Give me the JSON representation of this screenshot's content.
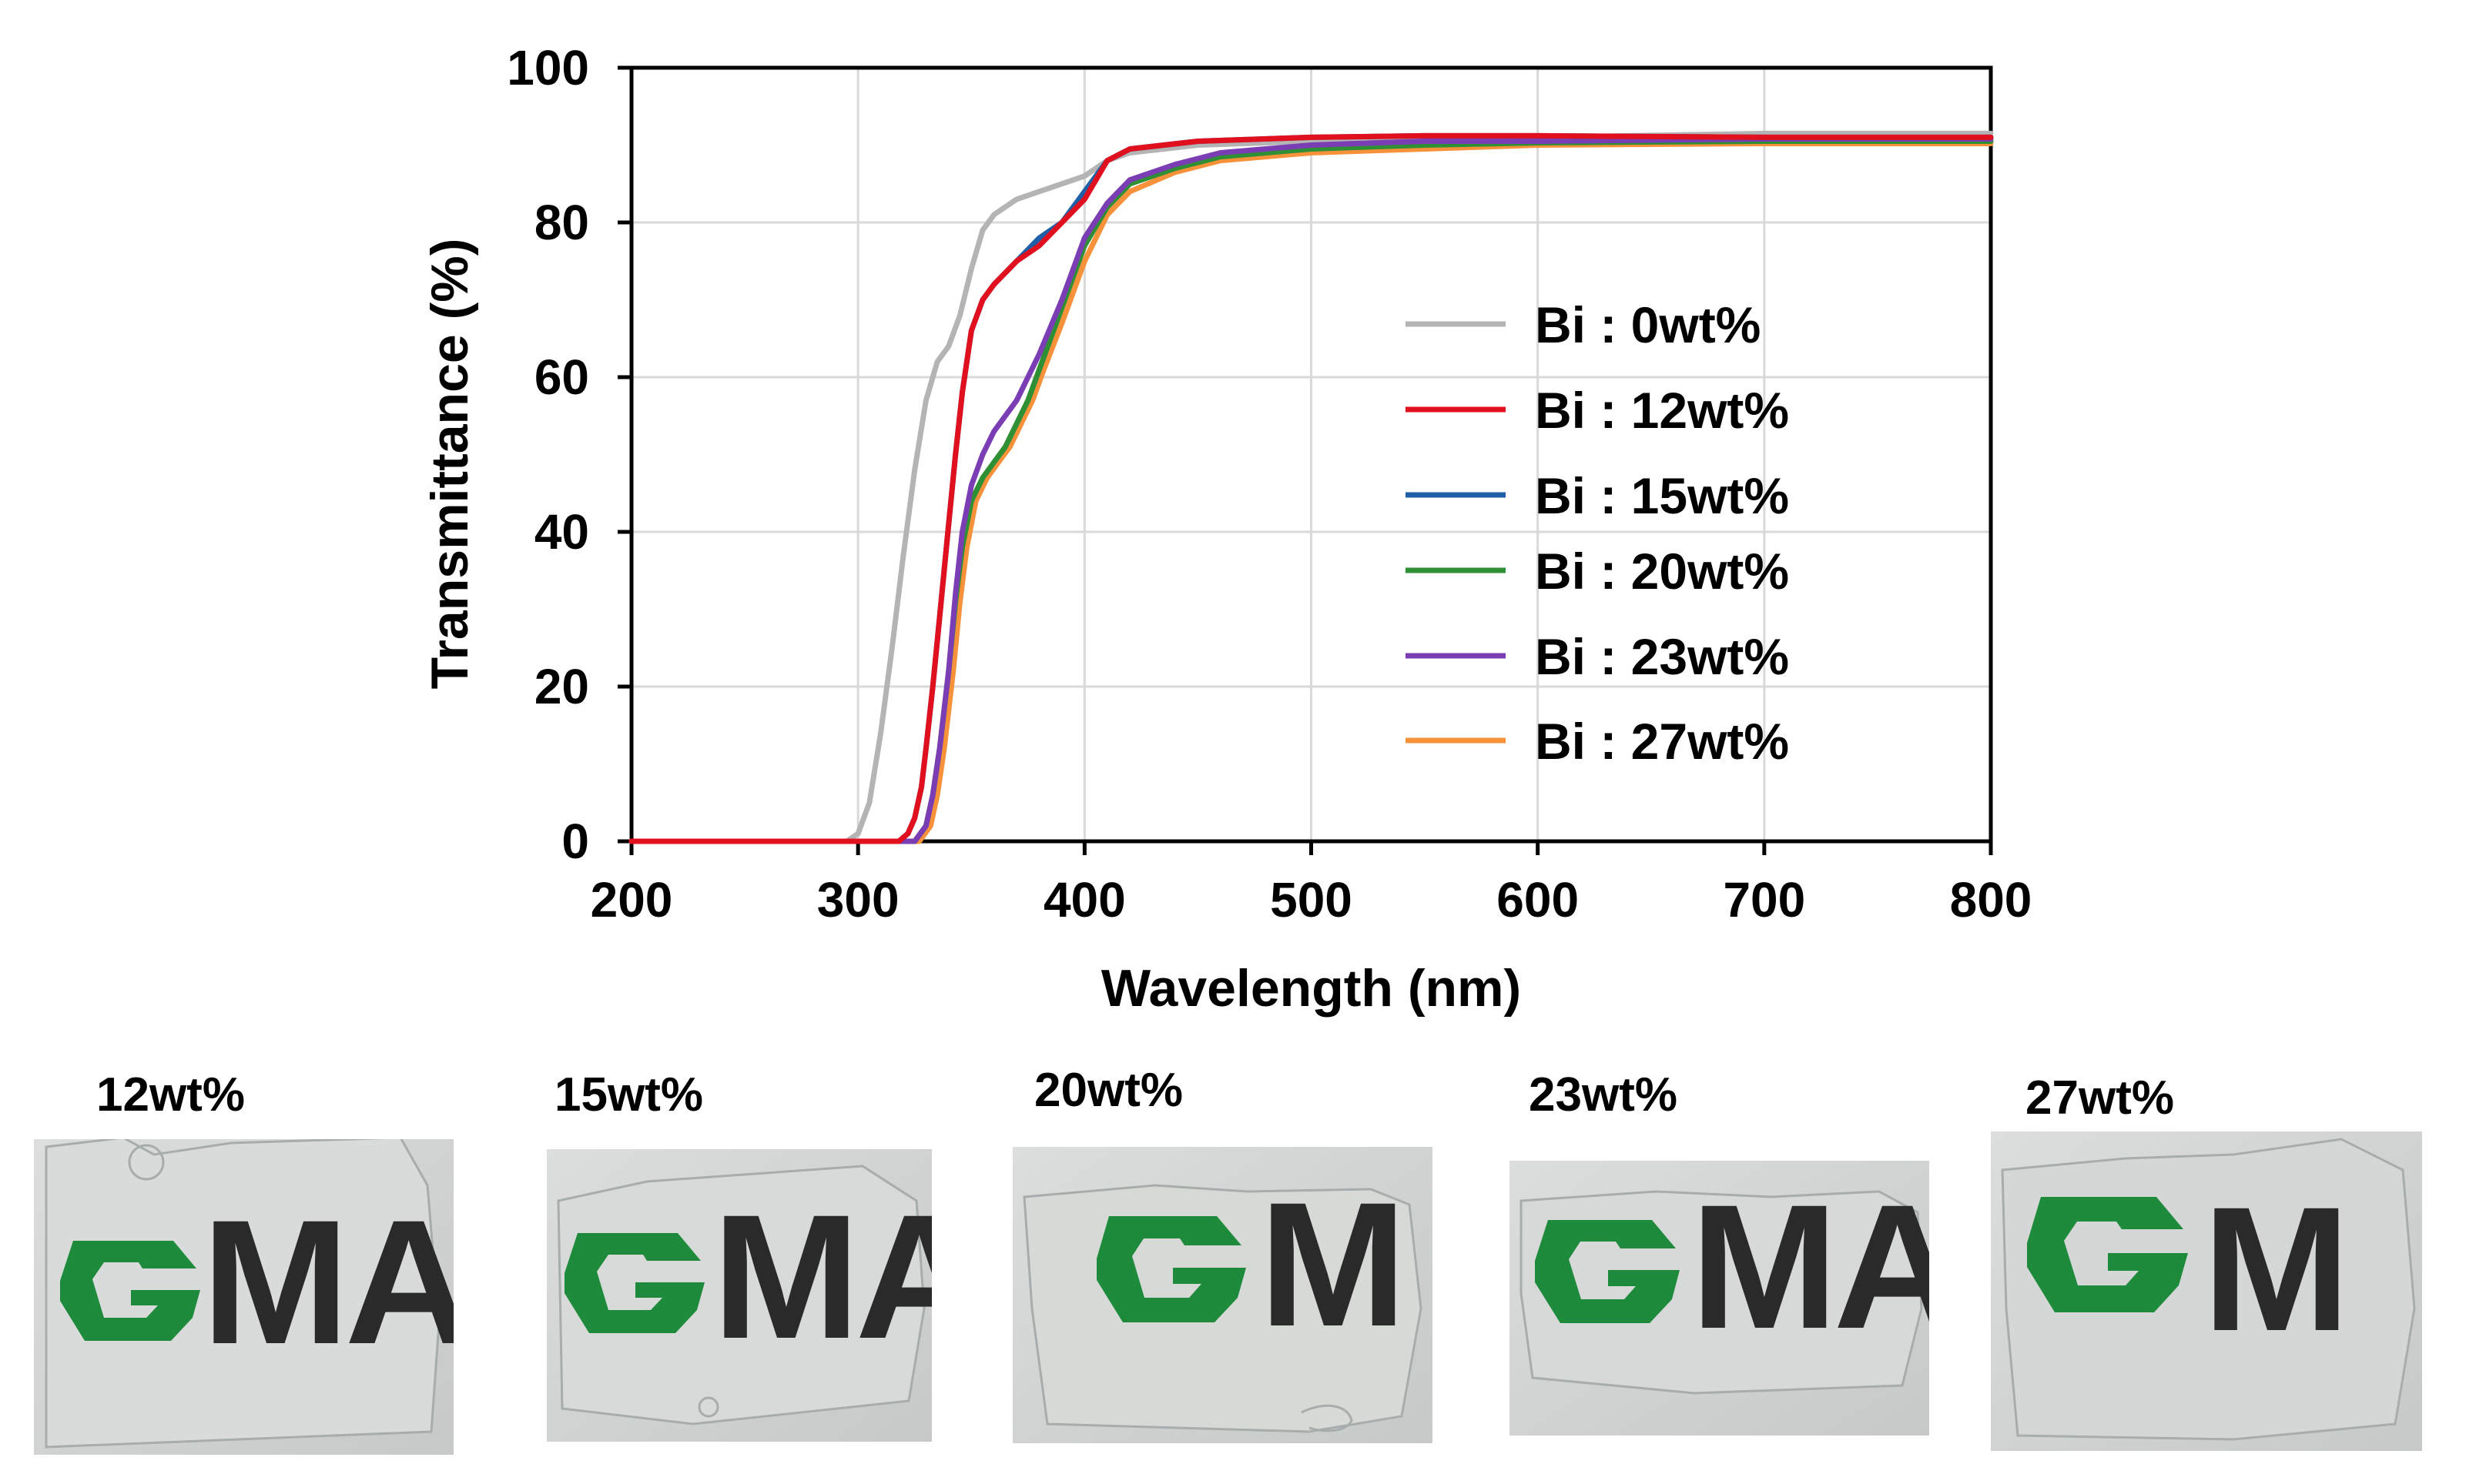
{
  "chart_data": {
    "type": "line",
    "title": "",
    "xlabel": "Wavelength (nm)",
    "ylabel": "Transmittance (%)",
    "xlim": [
      200,
      800
    ],
    "ylim": [
      0,
      100
    ],
    "xticks": [
      200,
      300,
      400,
      500,
      600,
      700,
      800
    ],
    "yticks": [
      0,
      20,
      40,
      60,
      80,
      100
    ],
    "grid": true,
    "legend_position": "center-right",
    "series": [
      {
        "name": "Bi : 0wt%",
        "color": "#b4b4b4",
        "x": [
          200,
          295,
          300,
          305,
          310,
          315,
          320,
          325,
          330,
          335,
          340,
          345,
          350,
          355,
          360,
          365,
          370,
          380,
          390,
          400,
          410,
          420,
          450,
          500,
          550,
          600,
          700,
          800
        ],
        "y": [
          0,
          0,
          1,
          5,
          14,
          25,
          37,
          48,
          57,
          62,
          64,
          68,
          74,
          79,
          81,
          82,
          83,
          84,
          85,
          86,
          88,
          89,
          90,
          90.5,
          91,
          91,
          91.5,
          91.5
        ]
      },
      {
        "name": "Bi : 12wt%",
        "color": "#e0101e",
        "x": [
          200,
          318,
          322,
          325,
          328,
          330,
          333,
          336,
          340,
          343,
          346,
          350,
          355,
          360,
          370,
          380,
          390,
          400,
          410,
          420,
          450,
          500,
          550,
          600,
          700,
          800
        ],
        "y": [
          0,
          0,
          1,
          3,
          7,
          12,
          20,
          29,
          41,
          50,
          58,
          66,
          70,
          72,
          75,
          77,
          80,
          83,
          88,
          89.5,
          90.5,
          91,
          91.2,
          91.2,
          91,
          91
        ]
      },
      {
        "name": "Bi : 15wt%",
        "color": "#1f5fa8",
        "x": [
          200,
          318,
          322,
          325,
          328,
          330,
          333,
          336,
          340,
          343,
          346,
          350,
          355,
          360,
          370,
          380,
          390,
          400,
          410,
          420,
          450,
          500,
          550,
          600,
          700,
          800
        ],
        "y": [
          0,
          0,
          1,
          3,
          7,
          12,
          20,
          29,
          41,
          50,
          58,
          66,
          70,
          72,
          75,
          78,
          80,
          84,
          88,
          89.5,
          90.5,
          91,
          91.2,
          91.2,
          91,
          91
        ]
      },
      {
        "name": "Bi : 20wt%",
        "color": "#2f8f35",
        "x": [
          200,
          325,
          330,
          333,
          336,
          340,
          343,
          346,
          350,
          355,
          360,
          365,
          370,
          375,
          380,
          390,
          400,
          410,
          420,
          440,
          460,
          500,
          550,
          600,
          700,
          800
        ],
        "y": [
          0,
          0,
          2,
          6,
          12,
          22,
          31,
          38,
          44,
          47,
          49,
          51,
          54,
          57,
          61,
          69,
          77,
          82,
          85,
          87,
          88.5,
          89.5,
          90,
          90.3,
          90.5,
          90.5
        ]
      },
      {
        "name": "Bi : 23wt%",
        "color": "#7b3db4",
        "x": [
          200,
          325,
          330,
          333,
          336,
          340,
          343,
          346,
          350,
          355,
          360,
          365,
          370,
          375,
          380,
          390,
          400,
          410,
          420,
          440,
          460,
          500,
          550,
          600,
          700,
          800
        ],
        "y": [
          0,
          0,
          2,
          6,
          12,
          22,
          32,
          40,
          46,
          50,
          53,
          55,
          57,
          60,
          63,
          70,
          78,
          82.5,
          85.5,
          87.5,
          89,
          90,
          90.5,
          90.5,
          90.8,
          90.8
        ]
      },
      {
        "name": "Bi : 27wt%",
        "color": "#f7913a",
        "x": [
          200,
          327,
          332,
          335,
          338,
          342,
          345,
          348,
          352,
          357,
          362,
          367,
          372,
          377,
          382,
          390,
          400,
          410,
          420,
          440,
          460,
          500,
          550,
          600,
          700,
          800
        ],
        "y": [
          0,
          0,
          2,
          6,
          12,
          22,
          31,
          38,
          44,
          47,
          49,
          51,
          54,
          57,
          61,
          67,
          75,
          81,
          84,
          86.5,
          88,
          89,
          89.5,
          90,
          90.2,
          90.2
        ]
      }
    ]
  },
  "photos": [
    {
      "label": "12wt%",
      "logo_text": "MA"
    },
    {
      "label": "15wt%",
      "logo_text": "MA"
    },
    {
      "label": "20wt%",
      "logo_text": "M"
    },
    {
      "label": "23wt%",
      "logo_text": "MA"
    },
    {
      "label": "27wt%",
      "logo_text": "M"
    }
  ],
  "colors": {
    "logo_green": "#1e8a3c",
    "logo_dark": "#2b2a2a",
    "film_edge": "#9aa3a3"
  }
}
